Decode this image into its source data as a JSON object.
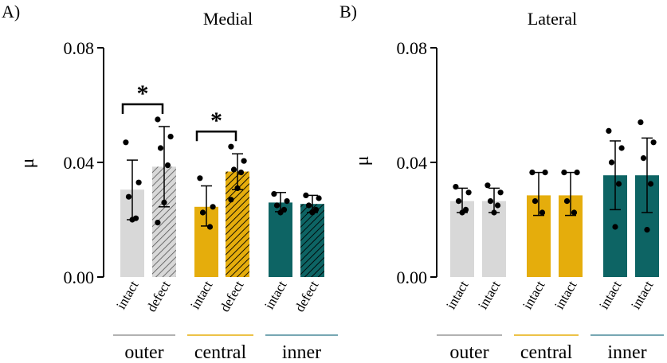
{
  "chart_data": [
    {
      "type": "bar",
      "panel_label": "A)",
      "title": "Medial",
      "ylabel": "μ",
      "ylim": [
        0,
        0.08
      ],
      "yticks": [
        "0.00",
        "0.04",
        "0.08"
      ],
      "bars": [
        {
          "group": "outer",
          "label": "intact",
          "mean": 0.0305,
          "err_low": 0.02,
          "err_high": 0.0408,
          "color": "#d8d8d8",
          "hatched": false,
          "points": [
            0.047,
            0.033,
            0.028,
            0.0205,
            0.02
          ]
        },
        {
          "group": "outer",
          "label": "defect",
          "mean": 0.0385,
          "err_low": 0.0245,
          "err_high": 0.0525,
          "color": "#d8d8d8",
          "hatched": true,
          "points": [
            0.055,
            0.049,
            0.045,
            0.039,
            0.026,
            0.019
          ]
        },
        {
          "group": "central",
          "label": "intact",
          "mean": 0.0245,
          "err_low": 0.0178,
          "err_high": 0.0318,
          "color": "#e5ad0c",
          "hatched": false,
          "points": [
            0.0345,
            0.0245,
            0.0225,
            0.0175
          ]
        },
        {
          "group": "central",
          "label": "defect",
          "mean": 0.0368,
          "err_low": 0.0305,
          "err_high": 0.043,
          "color": "#e5ad0c",
          "hatched": true,
          "points": [
            0.0455,
            0.0405,
            0.0375,
            0.0365,
            0.031,
            0.027
          ]
        },
        {
          "group": "inner",
          "label": "intact",
          "mean": 0.026,
          "err_low": 0.0228,
          "err_high": 0.0295,
          "color": "#0d6464",
          "hatched": false,
          "points": [
            0.029,
            0.0265,
            0.025,
            0.0235,
            0.0225
          ]
        },
        {
          "group": "inner",
          "label": "defect",
          "mean": 0.0255,
          "err_low": 0.0225,
          "err_high": 0.0285,
          "color": "#0d6464",
          "hatched": true,
          "points": [
            0.0285,
            0.0275,
            0.025,
            0.0235,
            0.0225
          ]
        }
      ],
      "significance": [
        {
          "from": 0,
          "to": 1,
          "label": "*"
        },
        {
          "from": 2,
          "to": 3,
          "label": "*"
        }
      ],
      "groups": [
        {
          "name": "outer",
          "color": "#999999"
        },
        {
          "name": "central",
          "color": "#e5ad0c"
        },
        {
          "name": "inner",
          "color": "#4a8a9a"
        }
      ]
    },
    {
      "type": "bar",
      "panel_label": "B)",
      "title": "Lateral",
      "ylabel": "μ",
      "ylim": [
        0,
        0.08
      ],
      "yticks": [
        "0.00",
        "0.04",
        "0.08"
      ],
      "bars": [
        {
          "group": "outer",
          "label": "intact",
          "mean": 0.0265,
          "err_low": 0.0225,
          "err_high": 0.031,
          "color": "#d8d8d8",
          "hatched": false,
          "points": [
            0.0315,
            0.0295,
            0.0265,
            0.0235,
            0.0225
          ]
        },
        {
          "group": "outer",
          "label": "intact",
          "mean": 0.0265,
          "err_low": 0.0225,
          "err_high": 0.031,
          "color": "#d8d8d8",
          "hatched": false,
          "points": [
            0.032,
            0.0295,
            0.0265,
            0.025,
            0.0225
          ]
        },
        {
          "group": "central",
          "label": "intact",
          "mean": 0.0285,
          "err_low": 0.0215,
          "err_high": 0.0365,
          "color": "#e5ad0c",
          "hatched": false,
          "points": [
            0.0365,
            0.0365,
            0.0265,
            0.0225
          ]
        },
        {
          "group": "central",
          "label": "intact",
          "mean": 0.0285,
          "err_low": 0.0215,
          "err_high": 0.0365,
          "color": "#e5ad0c",
          "hatched": false,
          "points": [
            0.0365,
            0.0365,
            0.0265,
            0.0225
          ]
        },
        {
          "group": "inner",
          "label": "intact",
          "mean": 0.0355,
          "err_low": 0.0235,
          "err_high": 0.0475,
          "color": "#0d6464",
          "hatched": false,
          "points": [
            0.051,
            0.045,
            0.04,
            0.0325,
            0.0175
          ]
        },
        {
          "group": "inner",
          "label": "intact",
          "mean": 0.0355,
          "err_low": 0.0225,
          "err_high": 0.0485,
          "color": "#0d6464",
          "hatched": false,
          "points": [
            0.054,
            0.047,
            0.0415,
            0.0325,
            0.0165
          ]
        }
      ],
      "significance": [],
      "groups": [
        {
          "name": "outer",
          "color": "#999999"
        },
        {
          "name": "central",
          "color": "#e5ad0c"
        },
        {
          "name": "inner",
          "color": "#4a8a9a"
        }
      ]
    }
  ]
}
